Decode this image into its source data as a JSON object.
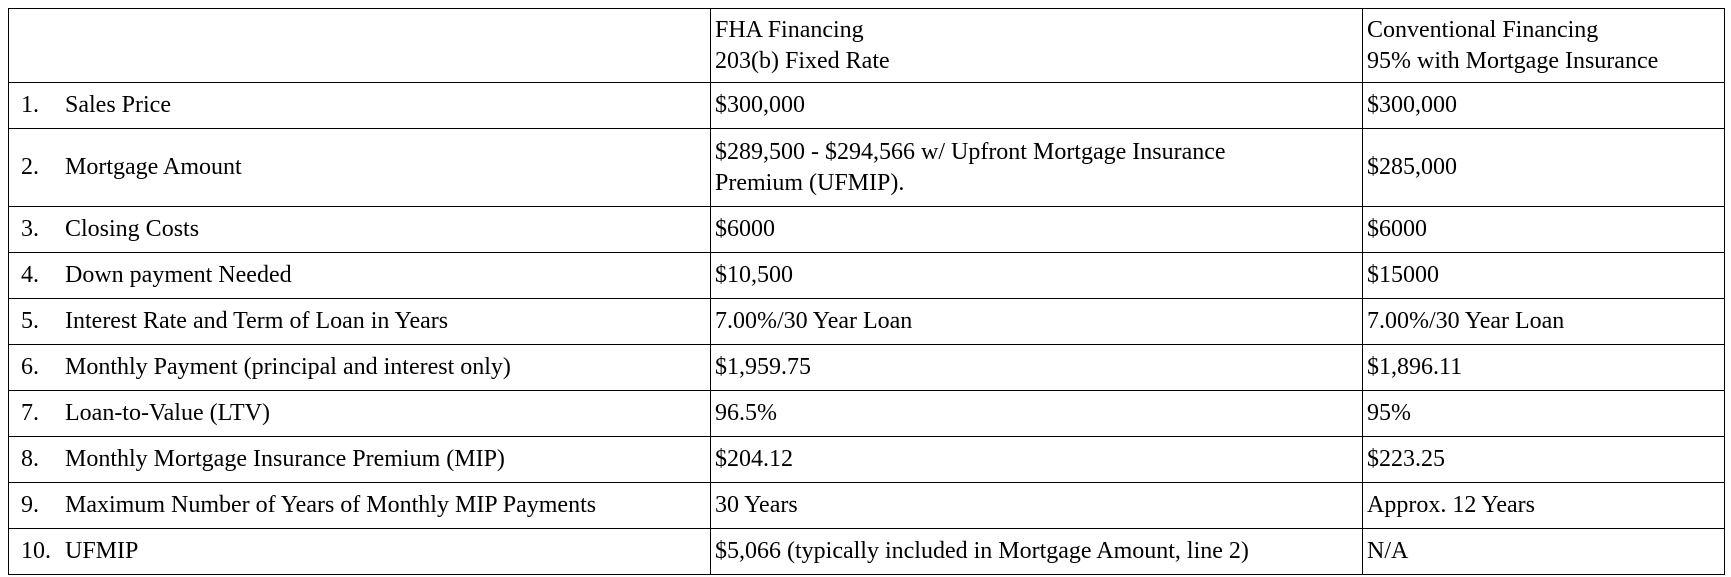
{
  "header": {
    "fha_title": "FHA Financing",
    "fha_subtitle": "203(b) Fixed Rate",
    "conv_title": "Conventional Financing",
    "conv_subtitle": "95% with Mortgage Insurance"
  },
  "rows": [
    {
      "num": "1.",
      "label": "Sales Price",
      "fha": "$300,000",
      "conv": "$300,000"
    },
    {
      "num": "2.",
      "label": "Mortgage Amount",
      "fha_line1": "$289,500 - $294,566 w/ Upfront Mortgage Insurance",
      "fha_line2": "Premium (UFMIP).",
      "conv": "$285,000"
    },
    {
      "num": "3.",
      "label": "Closing Costs",
      "fha": "$6000",
      "conv": "$6000"
    },
    {
      "num": "4.",
      "label": "Down payment Needed",
      "fha": "$10,500",
      "conv": "$15000"
    },
    {
      "num": "5.",
      "label": "Interest Rate and Term of Loan in Years",
      "fha": "7.00%/30 Year Loan",
      "conv": "7.00%/30 Year Loan"
    },
    {
      "num": "6.",
      "label": "Monthly Payment (principal and interest only)",
      "fha": "$1,959.75",
      "conv": "$1,896.11"
    },
    {
      "num": "7.",
      "label": "Loan-to-Value (LTV)",
      "fha": "96.5%",
      "conv": "95%"
    },
    {
      "num": "8.",
      "label": "Monthly Mortgage Insurance Premium (MIP)",
      "fha": "$204.12",
      "conv": "$223.25"
    },
    {
      "num": "9.",
      "label": "Maximum Number of Years of Monthly MIP Payments",
      "fha": "30 Years",
      "conv": "Approx. 12 Years"
    },
    {
      "num": "10.",
      "label": "UFMIP",
      "fha": "$5,066 (typically included in Mortgage Amount, line 2)",
      "conv": "N/A"
    }
  ]
}
